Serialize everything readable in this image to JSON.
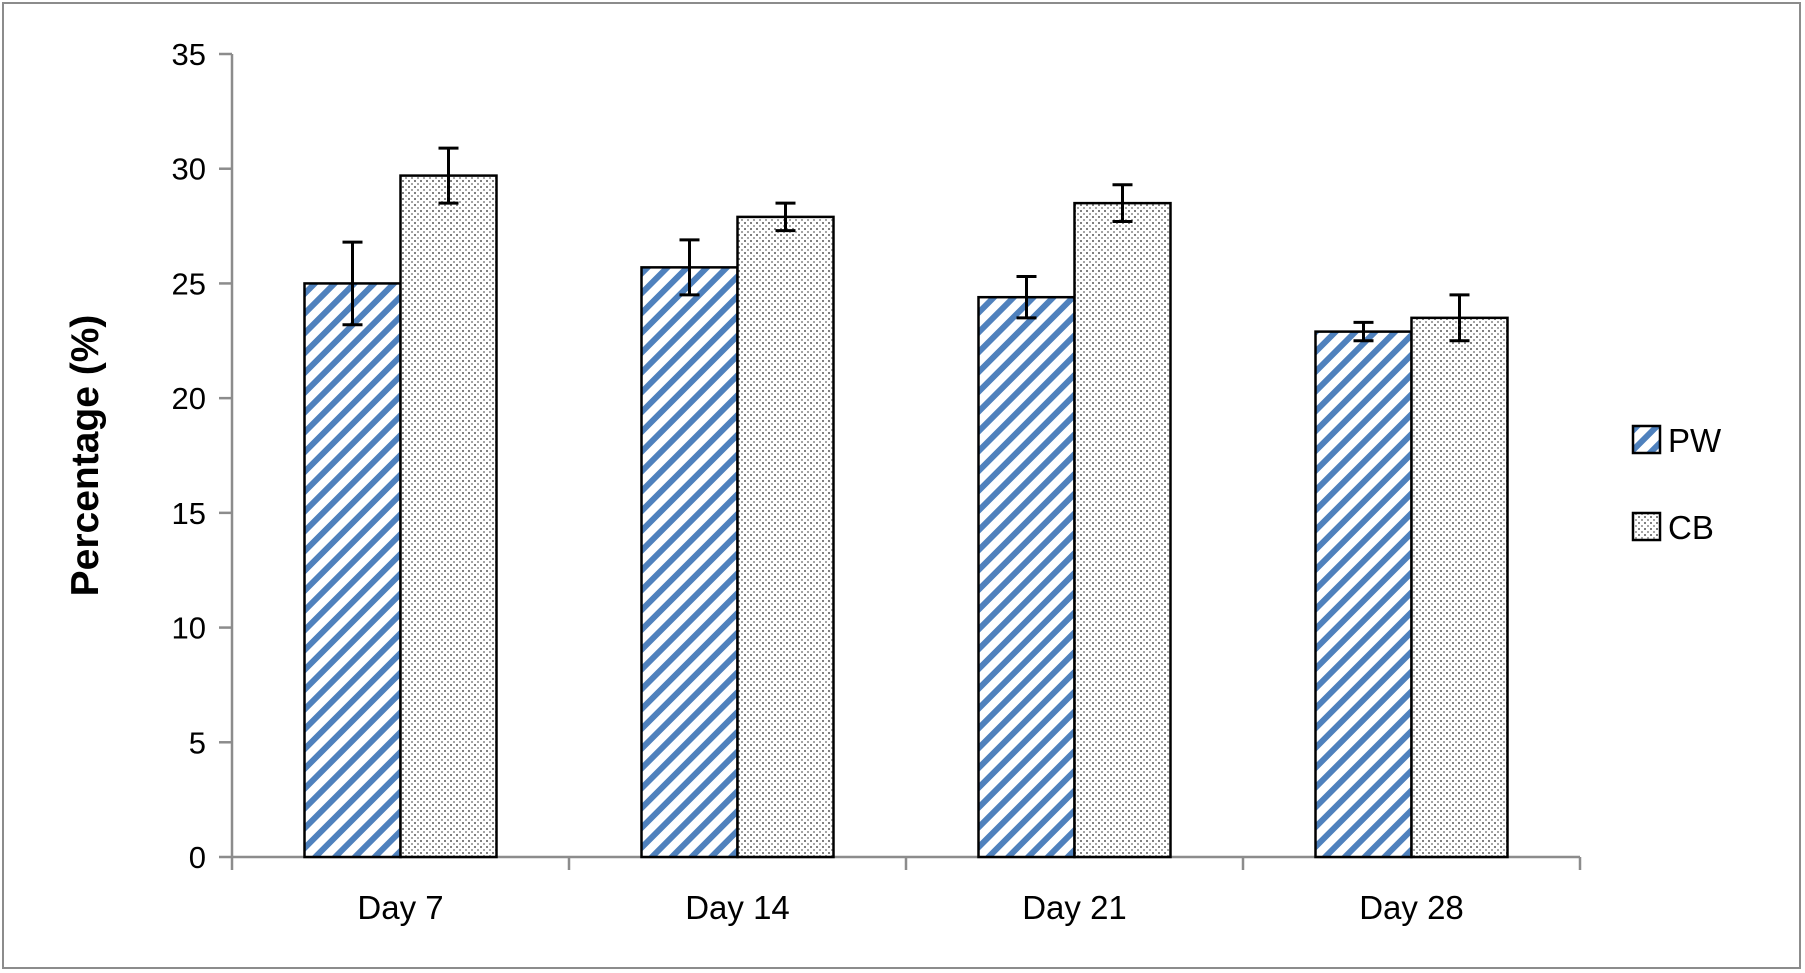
{
  "chart_data": {
    "type": "bar",
    "title": "",
    "xlabel": "",
    "ylabel": "Percentage (%)",
    "categories": [
      "Day 7",
      "Day 14",
      "Day 21",
      "Day 28"
    ],
    "ylim": [
      0,
      35
    ],
    "yticks": [
      0,
      5,
      10,
      15,
      20,
      25,
      30,
      35
    ],
    "grid": false,
    "legend_position": "right",
    "series": [
      {
        "name": "PW",
        "values": [
          25.0,
          25.7,
          24.4,
          22.9
        ],
        "errors": [
          1.8,
          1.2,
          0.9,
          0.4
        ],
        "pattern": "diagonal-stripes",
        "color": "#4f81bd"
      },
      {
        "name": "CB",
        "values": [
          29.7,
          27.9,
          28.5,
          23.5
        ],
        "errors": [
          1.2,
          0.6,
          0.8,
          1.0
        ],
        "pattern": "dotted-grid",
        "color": "#808080"
      }
    ]
  }
}
